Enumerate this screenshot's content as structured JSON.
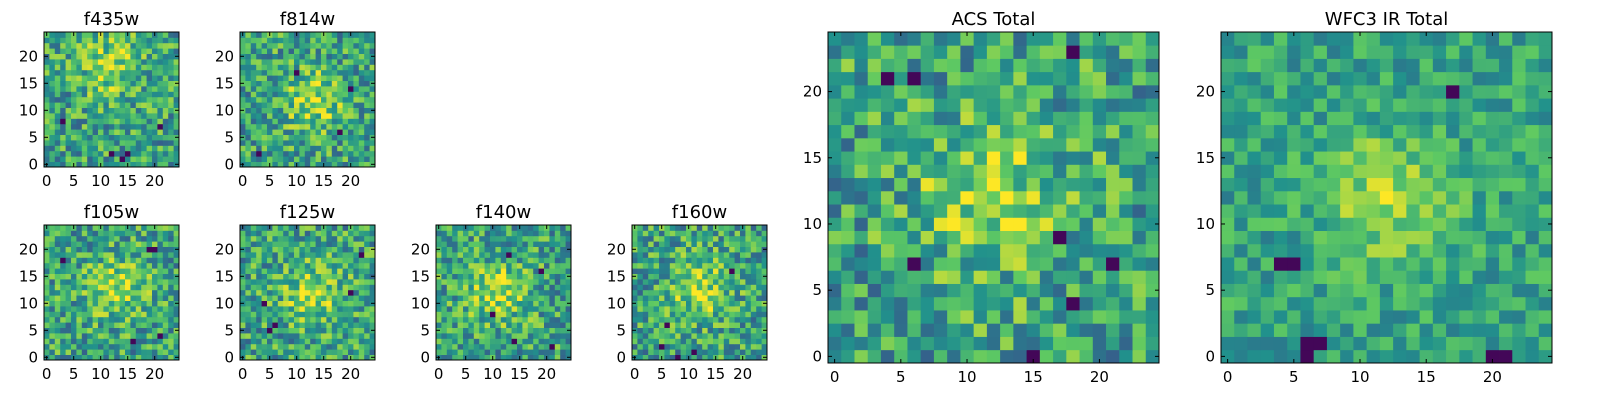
{
  "figure": {
    "colormap": "viridis",
    "colors": [
      "#440154",
      "#3b528b",
      "#21918c",
      "#5ec962",
      "#fde725"
    ],
    "background": "#ffffff",
    "axes_color": "#000000"
  },
  "chart_data": [
    {
      "type": "heatmap",
      "title": "f435w",
      "grid_size": 25,
      "xlim": [
        0,
        24
      ],
      "ylim": [
        0,
        24
      ],
      "xticks": [
        0,
        5,
        10,
        15,
        20
      ],
      "yticks": [
        0,
        5,
        10,
        15,
        20
      ],
      "xtick_labels": [
        "0",
        "5",
        "10",
        "15",
        "20"
      ],
      "ytick_labels": [
        "0",
        "5",
        "10",
        "15",
        "20"
      ],
      "dark_pixels": [
        [
          14,
          1
        ],
        [
          15,
          2
        ],
        [
          12,
          2
        ],
        [
          3,
          8
        ],
        [
          21,
          7
        ]
      ],
      "bright_region": [
        12,
        18
      ],
      "seed": 11
    },
    {
      "type": "heatmap",
      "title": "f814w",
      "grid_size": 25,
      "xlim": [
        0,
        24
      ],
      "ylim": [
        0,
        24
      ],
      "xticks": [
        0,
        5,
        10,
        15,
        20
      ],
      "yticks": [
        0,
        5,
        10,
        15,
        20
      ],
      "xtick_labels": [
        "0",
        "5",
        "10",
        "15",
        "20"
      ],
      "ytick_labels": [
        "0",
        "5",
        "10",
        "15",
        "20"
      ],
      "dark_pixels": [
        [
          10,
          17
        ],
        [
          3,
          2
        ],
        [
          20,
          14
        ],
        [
          18,
          6
        ]
      ],
      "bright_region": [
        13,
        12
      ],
      "seed": 23
    },
    {
      "type": "heatmap",
      "title": "f105w",
      "grid_size": 25,
      "xlim": [
        0,
        24
      ],
      "ylim": [
        0,
        24
      ],
      "xticks": [
        0,
        5,
        10,
        15,
        20
      ],
      "yticks": [
        0,
        5,
        10,
        15,
        20
      ],
      "xtick_labels": [
        "0",
        "5",
        "10",
        "15",
        "20"
      ],
      "ytick_labels": [
        "0",
        "5",
        "10",
        "15",
        "20"
      ],
      "dark_pixels": [
        [
          3,
          18
        ],
        [
          19,
          20
        ],
        [
          20,
          20
        ],
        [
          21,
          4
        ],
        [
          16,
          3
        ]
      ],
      "bright_region": [
        13,
        13
      ],
      "seed": 37
    },
    {
      "type": "heatmap",
      "title": "f125w",
      "grid_size": 25,
      "xlim": [
        0,
        24
      ],
      "ylim": [
        0,
        24
      ],
      "xticks": [
        0,
        5,
        10,
        15,
        20
      ],
      "yticks": [
        0,
        5,
        10,
        15,
        20
      ],
      "xtick_labels": [
        "0",
        "5",
        "10",
        "15",
        "20"
      ],
      "ytick_labels": [
        "0",
        "5",
        "10",
        "15",
        "20"
      ],
      "dark_pixels": [
        [
          5,
          5
        ],
        [
          6,
          6
        ],
        [
          4,
          10
        ],
        [
          20,
          12
        ],
        [
          22,
          19
        ]
      ],
      "bright_region": [
        13,
        12
      ],
      "seed": 41
    },
    {
      "type": "heatmap",
      "title": "f140w",
      "grid_size": 25,
      "xlim": [
        0,
        24
      ],
      "ylim": [
        0,
        24
      ],
      "xticks": [
        0,
        5,
        10,
        15,
        20
      ],
      "yticks": [
        0,
        5,
        10,
        15,
        20
      ],
      "xtick_labels": [
        "0",
        "5",
        "10",
        "15",
        "20"
      ],
      "ytick_labels": [
        "0",
        "5",
        "10",
        "15",
        "20"
      ],
      "dark_pixels": [
        [
          13,
          19
        ],
        [
          19,
          16
        ],
        [
          10,
          8
        ],
        [
          14,
          3
        ],
        [
          21,
          2
        ]
      ],
      "bright_region": [
        11,
        12
      ],
      "seed": 53
    },
    {
      "type": "heatmap",
      "title": "f160w",
      "grid_size": 25,
      "xlim": [
        0,
        24
      ],
      "ylim": [
        0,
        24
      ],
      "xticks": [
        0,
        5,
        10,
        15,
        20
      ],
      "yticks": [
        0,
        5,
        10,
        15,
        20
      ],
      "xtick_labels": [
        "0",
        "5",
        "10",
        "15",
        "20"
      ],
      "ytick_labels": [
        "0",
        "5",
        "10",
        "15",
        "20"
      ],
      "dark_pixels": [
        [
          8,
          0
        ],
        [
          5,
          2
        ],
        [
          6,
          6
        ],
        [
          18,
          16
        ],
        [
          11,
          1
        ]
      ],
      "bright_region": [
        12,
        13
      ],
      "seed": 67
    },
    {
      "type": "heatmap",
      "title": "ACS Total",
      "grid_size": 25,
      "xlim": [
        0,
        24
      ],
      "ylim": [
        0,
        24
      ],
      "xticks": [
        0,
        5,
        10,
        15,
        20
      ],
      "yticks": [
        0,
        5,
        10,
        15,
        20
      ],
      "xtick_labels": [
        "0",
        "5",
        "10",
        "15",
        "20"
      ],
      "ytick_labels": [
        "0",
        "5",
        "10",
        "15",
        "20"
      ],
      "dark_pixels": [
        [
          4,
          21
        ],
        [
          6,
          21
        ],
        [
          18,
          23
        ],
        [
          6,
          7
        ],
        [
          15,
          0
        ],
        [
          18,
          4
        ],
        [
          21,
          7
        ],
        [
          17,
          9
        ]
      ],
      "bright_region": [
        12,
        12
      ],
      "seed": 79
    },
    {
      "type": "heatmap",
      "title": "WFC3 IR Total",
      "grid_size": 25,
      "xlim": [
        0,
        24
      ],
      "ylim": [
        0,
        24
      ],
      "xticks": [
        0,
        5,
        10,
        15,
        20
      ],
      "yticks": [
        0,
        5,
        10,
        15,
        20
      ],
      "xtick_labels": [
        "0",
        "5",
        "10",
        "15",
        "20"
      ],
      "ytick_labels": [
        "0",
        "5",
        "10",
        "15",
        "20"
      ],
      "dark_pixels": [
        [
          6,
          0
        ],
        [
          7,
          1
        ],
        [
          6,
          1
        ],
        [
          5,
          7
        ],
        [
          4,
          7
        ],
        [
          17,
          20
        ],
        [
          21,
          0
        ],
        [
          20,
          0
        ]
      ],
      "bright_region": [
        12,
        12
      ],
      "seed": 97
    }
  ]
}
